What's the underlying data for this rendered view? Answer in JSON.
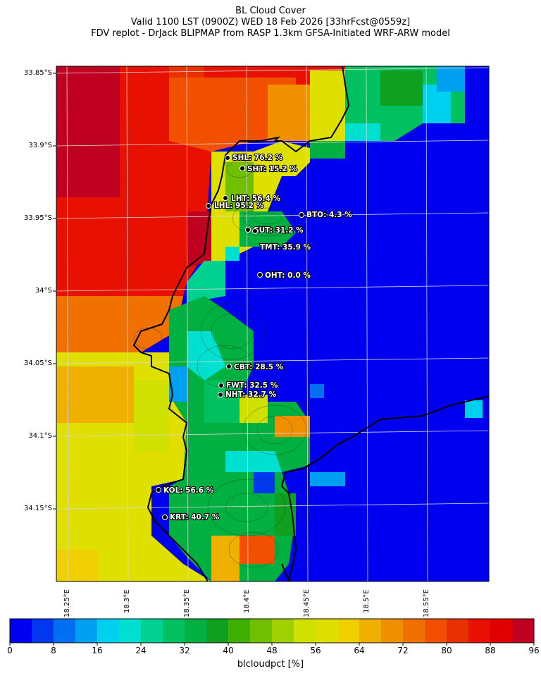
{
  "header": {
    "line1": "BL Cloud Cover",
    "line2": "Valid 1100 LST (0900Z) WED 18 Feb 2026 [33hrFcst@0559z]",
    "line3": "FDV replot - DrJack BLIPMAP from RASP 1.3km GFSA-Initiated WRF-ARW model"
  },
  "axes": {
    "lat_labels": [
      "33.85°S",
      "33.9°S",
      "33.95°S",
      "34°S",
      "34.05°S",
      "34.1°S",
      "34.15°S"
    ],
    "lon_labels": [
      "18.25°E",
      "18.3°E",
      "18.35°E",
      "18.4°E",
      "18.45°E",
      "18.5°E",
      "18.55°E"
    ]
  },
  "stations": [
    {
      "label": "SHL: 76.2 %"
    },
    {
      "label": "SHT: 15.2 %"
    },
    {
      "label": "LHT: 56.4 %"
    },
    {
      "label": "LHL: 95.2 %"
    },
    {
      "label": "BTO: 4.3 %"
    },
    {
      "label": "GUT: 31.2 %"
    },
    {
      "label": "TMT: 35.9 %"
    },
    {
      "label": "OHT: 0.0 %"
    },
    {
      "label": "CBT: 28.5 %"
    },
    {
      "label": "FWT: 32.5 %"
    },
    {
      "label": "NHT: 32.7 %"
    },
    {
      "label": "KOL: 56.6 %"
    },
    {
      "label": "KRT: 40.7 %"
    }
  ],
  "colorbar": {
    "label": "blcloudpct [%]",
    "ticks": [
      "0",
      "8",
      "16",
      "24",
      "32",
      "40",
      "48",
      "56",
      "64",
      "72",
      "80",
      "88",
      "96"
    ],
    "colors": [
      "#0000f0",
      "#0038f0",
      "#0070f0",
      "#00a0f0",
      "#00d0f0",
      "#00e0d0",
      "#00d090",
      "#00c060",
      "#00b040",
      "#10a020",
      "#40b000",
      "#70c000",
      "#a0d000",
      "#d0e000",
      "#e0e000",
      "#f0d000",
      "#f0b000",
      "#f09000",
      "#f07000",
      "#f05000",
      "#e83000",
      "#e81000",
      "#e00000",
      "#c00020"
    ]
  }
}
